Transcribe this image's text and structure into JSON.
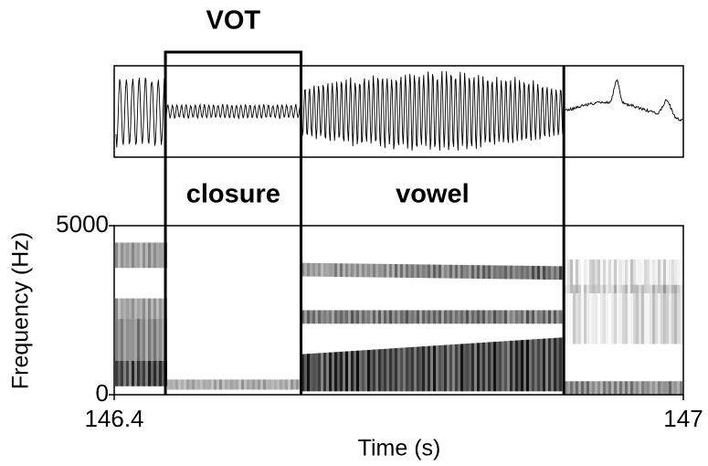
{
  "chart_data": {
    "type": "spectrogram",
    "xlabel": "Time (s)",
    "ylabel": "Frequency (Hz)",
    "xlim": [
      146.4,
      147
    ],
    "xticks": [
      146.4,
      147
    ],
    "ylim": [
      0,
      5000
    ],
    "yticks": [
      0,
      5000
    ],
    "boundaries": [
      146.454,
      146.597,
      146.874
    ],
    "annotations": [
      "VOT",
      "closure",
      "vowel"
    ]
  }
}
